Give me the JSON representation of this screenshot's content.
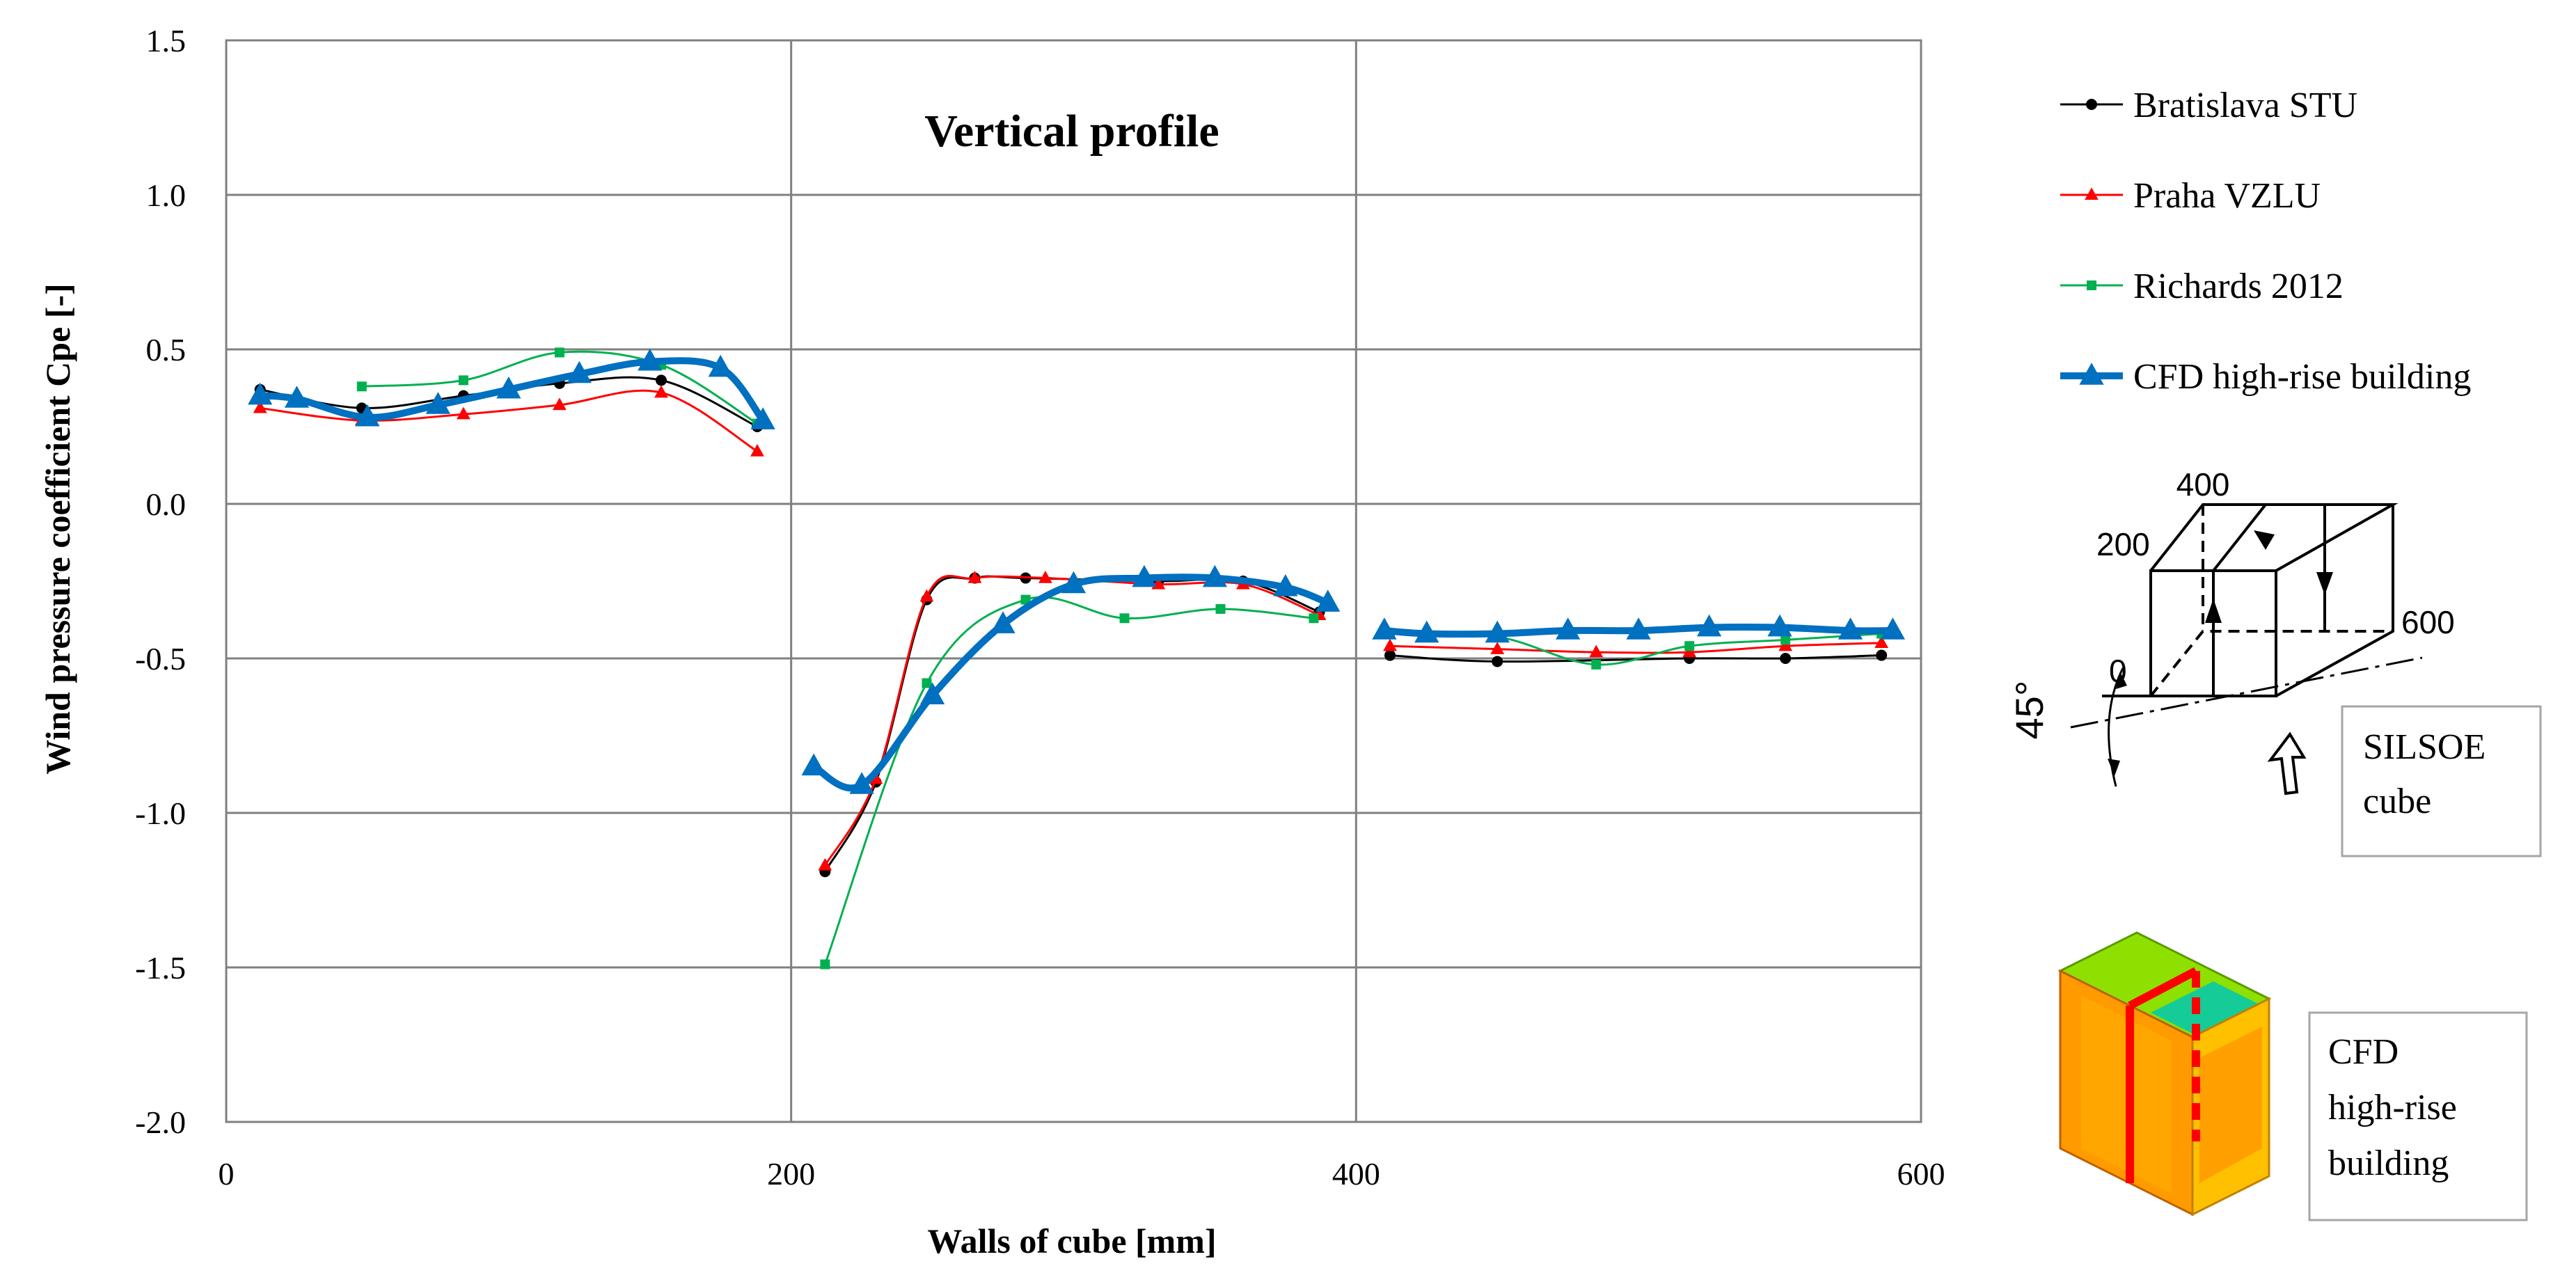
{
  "chart_data": {
    "type": "line",
    "title": "Vertical profile",
    "xlabel": "Walls of cube [mm]",
    "ylabel": "Wind pressure coefficient Cpe [-]",
    "xlim": [
      0,
      600
    ],
    "ylim": [
      -2.0,
      1.5
    ],
    "xticks": [
      0,
      200,
      400,
      600
    ],
    "yticks": [
      1.5,
      1.0,
      0.5,
      0.0,
      -0.5,
      -1.0,
      -1.5,
      -2.0
    ],
    "ytick_labels": [
      "1.5",
      "1.0",
      "0.5",
      "0.0",
      "-0.5",
      "-1.0",
      "-1.5",
      "-2.0"
    ],
    "x_grid": true,
    "y_grid": true,
    "legend_position": "right",
    "series": [
      {
        "name": "Bratislava STU",
        "color": "#000000",
        "marker": "circle",
        "segments": [
          [
            [
              12,
              0.37
            ],
            [
              48,
              0.31
            ],
            [
              84,
              0.35
            ],
            [
              118,
              0.39
            ],
            [
              154,
              0.4
            ],
            [
              188,
              0.25
            ]
          ],
          [
            [
              212,
              -1.19
            ],
            [
              230,
              -0.9
            ],
            [
              248,
              -0.31
            ],
            [
              265,
              -0.24
            ],
            [
              283,
              -0.24
            ],
            [
              330,
              -0.25
            ],
            [
              360,
              -0.25
            ],
            [
              387,
              -0.35
            ]
          ],
          [
            [
              412,
              -0.49
            ],
            [
              450,
              -0.51
            ],
            [
              518,
              -0.5
            ],
            [
              552,
              -0.5
            ],
            [
              586,
              -0.49
            ]
          ]
        ]
      },
      {
        "name": "Praha VZLU",
        "color": "#ff0000",
        "marker": "triangle",
        "segments": [
          [
            [
              12,
              0.31
            ],
            [
              48,
              0.27
            ],
            [
              84,
              0.29
            ],
            [
              118,
              0.32
            ],
            [
              154,
              0.36
            ],
            [
              188,
              0.17
            ]
          ],
          [
            [
              212,
              -1.17
            ],
            [
              230,
              -0.89
            ],
            [
              248,
              -0.3
            ],
            [
              265,
              -0.24
            ],
            [
              290,
              -0.24
            ],
            [
              330,
              -0.26
            ],
            [
              360,
              -0.26
            ],
            [
              387,
              -0.36
            ]
          ],
          [
            [
              412,
              -0.46
            ],
            [
              450,
              -0.47
            ],
            [
              485,
              -0.48
            ],
            [
              518,
              -0.48
            ],
            [
              552,
              -0.46
            ],
            [
              586,
              -0.45
            ]
          ]
        ]
      },
      {
        "name": "Richards 2012",
        "color": "#00b050",
        "marker": "square",
        "segments": [
          [
            [
              48,
              0.38
            ],
            [
              84,
              0.4
            ],
            [
              118,
              0.49
            ],
            [
              154,
              0.45
            ],
            [
              188,
              0.26
            ]
          ],
          [
            [
              212,
              -1.49
            ],
            [
              248,
              -0.58
            ],
            [
              283,
              -0.31
            ],
            [
              318,
              -0.37
            ],
            [
              352,
              -0.34
            ],
            [
              385,
              -0.37
            ]
          ],
          [
            [
              412,
              -0.42
            ],
            [
              450,
              -0.43
            ],
            [
              485,
              -0.52
            ],
            [
              518,
              -0.46
            ],
            [
              552,
              -0.44
            ],
            [
              586,
              -0.42
            ]
          ]
        ]
      },
      {
        "name": "CFD high-rise building",
        "color": "#0070c0",
        "marker": "triangle",
        "segments": [
          [
            [
              12,
              0.35
            ],
            [
              25,
              0.34
            ],
            [
              50,
              0.28
            ],
            [
              75,
              0.32
            ],
            [
              100,
              0.37
            ],
            [
              125,
              0.42
            ],
            [
              150,
              0.46
            ],
            [
              175,
              0.44
            ],
            [
              190,
              0.27
            ]
          ],
          [
            [
              208,
              -0.85
            ],
            [
              225,
              -0.91
            ],
            [
              250,
              -0.62
            ],
            [
              275,
              -0.39
            ],
            [
              300,
              -0.26
            ],
            [
              325,
              -0.24
            ],
            [
              350,
              -0.24
            ],
            [
              375,
              -0.27
            ],
            [
              390,
              -0.32
            ]
          ],
          [
            [
              410,
              -0.41
            ],
            [
              425,
              -0.42
            ],
            [
              450,
              -0.42
            ],
            [
              475,
              -0.41
            ],
            [
              500,
              -0.41
            ],
            [
              525,
              -0.4
            ],
            [
              550,
              -0.4
            ],
            [
              575,
              -0.41
            ],
            [
              590,
              -0.41
            ]
          ]
        ]
      }
    ]
  },
  "diagram": {
    "dim_400": "400",
    "dim_200": "200",
    "dim_600": "600",
    "dim_0": "0",
    "angle": "45°",
    "silsoe_line1": "SILSOE",
    "silsoe_line2": "cube",
    "cfd_line1": "CFD",
    "cfd_line2": "high-rise",
    "cfd_line3": "building"
  }
}
